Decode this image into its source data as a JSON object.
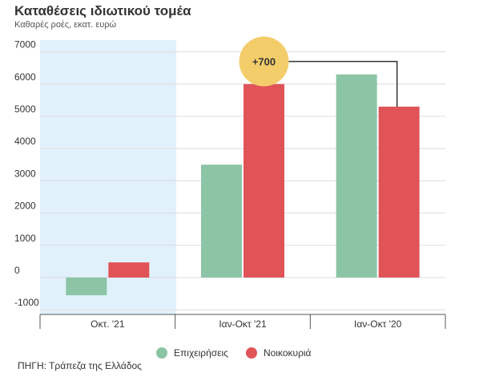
{
  "title": "Καταθέσεις ιδιωτικού τομέα",
  "subtitle": "Καθαρές ροές, εκατ. ευρώ",
  "source": "ΠΗΓΗ: Τράπεζα της Ελλάδος",
  "colors": {
    "companies": "#8cc4a6",
    "households": "#e05458",
    "highlight": "#e1f1fb",
    "annotation": "#f3cd6a"
  },
  "chart_data": {
    "type": "bar",
    "categories": [
      "Οκτ. '21",
      "Ιαν-Οκτ '21",
      "Ιαν-Οκτ '20"
    ],
    "series": [
      {
        "name": "Επιχειρήσεις",
        "values": [
          -550,
          3500,
          6300
        ]
      },
      {
        "name": "Νοικοκυριά",
        "values": [
          470,
          6000,
          5300
        ]
      }
    ],
    "yticks": [
      -1000,
      0,
      1000,
      2000,
      3000,
      4000,
      5000,
      6000,
      7000
    ],
    "ylim": [
      -1000,
      7000
    ],
    "xlabel": "",
    "ylabel": "",
    "legend": "bottom",
    "grid": true,
    "annotation": {
      "label": "+700"
    }
  }
}
